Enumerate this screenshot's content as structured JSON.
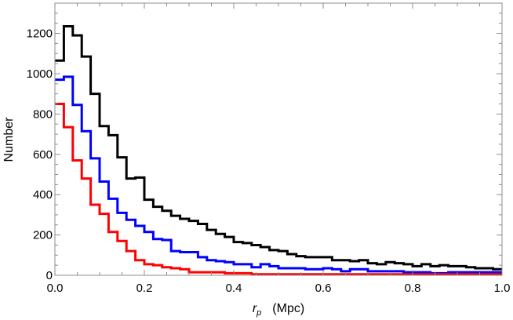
{
  "chart_data": {
    "type": "line",
    "step": true,
    "xlabel_symbol": "r",
    "xlabel_subscript": "p",
    "xlabel_unit": "(Mpc)",
    "ylabel": "Number",
    "xlim": [
      0,
      1.0
    ],
    "ylim": [
      0,
      1350
    ],
    "x_ticks": [
      0.0,
      0.2,
      0.4,
      0.6,
      0.8,
      1.0
    ],
    "x_tick_labels": [
      "0.0",
      "0.2",
      "0.4",
      "0.6",
      "0.8",
      "1.0"
    ],
    "y_ticks": [
      0,
      200,
      400,
      600,
      800,
      1000,
      1200
    ],
    "y_tick_labels": [
      "0",
      "200",
      "400",
      "600",
      "800",
      "1000",
      "1200"
    ],
    "grid": false,
    "legend": "none",
    "bin_width": 0.02,
    "series": [
      {
        "color": "#000000",
        "values": [
          1065,
          1235,
          1190,
          1085,
          900,
          740,
          695,
          585,
          480,
          485,
          375,
          340,
          320,
          295,
          280,
          270,
          255,
          225,
          205,
          190,
          165,
          160,
          150,
          140,
          125,
          120,
          105,
          95,
          90,
          90,
          90,
          75,
          75,
          70,
          75,
          60,
          55,
          65,
          60,
          55,
          45,
          55,
          45,
          50,
          45,
          45,
          40,
          35,
          35,
          30
        ]
      },
      {
        "color": "#0000ff",
        "values": [
          970,
          985,
          845,
          715,
          580,
          465,
          380,
          310,
          275,
          245,
          215,
          180,
          175,
          120,
          115,
          115,
          90,
          75,
          70,
          65,
          55,
          55,
          40,
          55,
          45,
          35,
          35,
          35,
          30,
          30,
          35,
          30,
          20,
          30,
          30,
          20,
          20,
          20,
          20,
          15,
          15,
          15,
          10,
          10,
          15,
          15,
          15,
          15,
          15,
          15
        ]
      },
      {
        "color": "#ff0000",
        "values": [
          850,
          735,
          570,
          480,
          350,
          305,
          215,
          170,
          120,
          75,
          55,
          50,
          40,
          35,
          30,
          15,
          15,
          15,
          15,
          10,
          10,
          10,
          5,
          5,
          5,
          5,
          5,
          5,
          5,
          5,
          5,
          5,
          5,
          5,
          5,
          5,
          5,
          5,
          5,
          5,
          5,
          5,
          5,
          5,
          5,
          5,
          5,
          5,
          5,
          5
        ]
      }
    ]
  }
}
